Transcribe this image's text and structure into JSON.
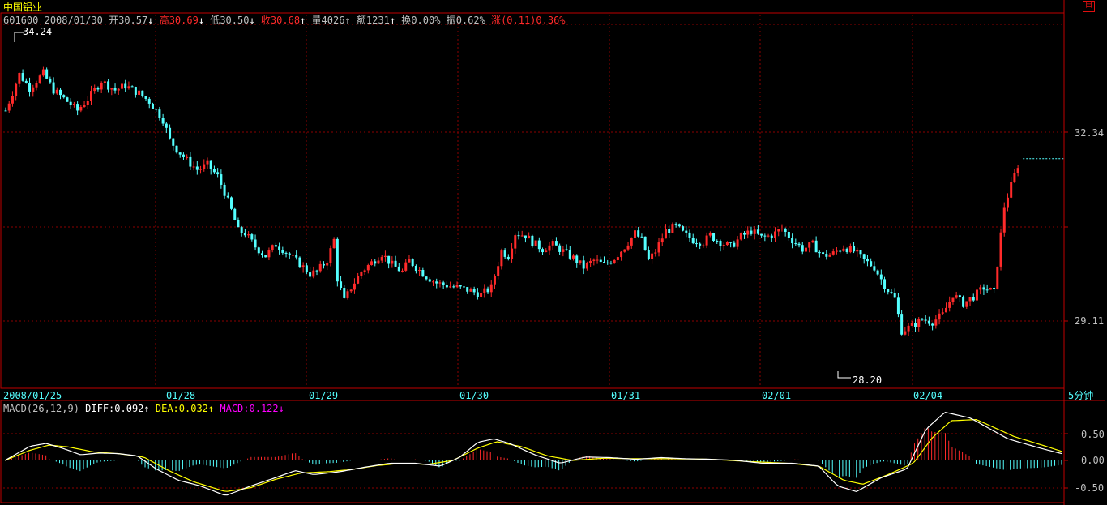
{
  "stock": {
    "name": "中国铝业",
    "code": "601600",
    "date": "2008/01/30",
    "open_label": "开",
    "open": "30.57",
    "high_label": "高",
    "high": "30.69",
    "low_label": "低",
    "low": "30.50",
    "close_label": "收",
    "close": "30.68",
    "vol_label": "量",
    "vol": "4026",
    "amount_label": "额",
    "amount": "1231",
    "turnover_label": "换",
    "turnover": "0.00%",
    "amplitude_label": "振",
    "amplitude": "0.62%",
    "change_label": "涨",
    "change": "(0.11)0.36%"
  },
  "period_label": "5分钟",
  "window_button": "日",
  "macd_header": {
    "name": "MACD(26,12,9)",
    "diff_label": "DIFF:",
    "diff": "0.092",
    "dea_label": "DEA:",
    "dea": "0.032",
    "macd_label": "MACD:",
    "macd": "0.122"
  },
  "colors": {
    "up": "#ff2a2a",
    "down": "#54ffff",
    "grid": "#8b0000",
    "border": "#c00000",
    "diff": "#ffffff",
    "dea": "#ffff00",
    "macd_label": "#ff00ff",
    "axis_text": "#c0c0c0"
  },
  "chart_data": [
    {
      "type": "candlestick",
      "x_tick_labels": [
        "2008/01/25",
        "01/28",
        "01/29",
        "01/30",
        "01/31",
        "02/01",
        "02/04"
      ],
      "y_tick_labels": [
        "32.34",
        "29.11"
      ],
      "yrange": [
        27.3,
        35.3
      ],
      "max_label": "34.24",
      "min_label": "28.20",
      "last_price": 32.34,
      "close_path": [
        [
          0,
          33.4
        ],
        [
          4,
          34.2
        ],
        [
          7,
          33.9
        ],
        [
          11,
          34.22
        ],
        [
          14,
          33.85
        ],
        [
          18,
          33.6
        ],
        [
          21,
          33.4
        ],
        [
          25,
          33.75
        ],
        [
          28,
          34.05
        ],
        [
          32,
          33.85
        ],
        [
          35,
          33.95
        ],
        [
          39,
          33.78
        ],
        [
          42,
          33.6
        ],
        [
          46,
          33.2
        ],
        [
          48,
          32.75
        ],
        [
          50,
          32.55
        ],
        [
          53,
          32.3
        ],
        [
          56,
          32.1
        ],
        [
          59,
          32.2
        ],
        [
          62,
          31.95
        ],
        [
          64,
          31.6
        ],
        [
          66,
          31.2
        ],
        [
          68,
          30.75
        ],
        [
          70,
          30.7
        ],
        [
          73,
          30.4
        ],
        [
          76,
          30.2
        ],
        [
          79,
          30.45
        ],
        [
          81,
          30.35
        ],
        [
          84,
          30.15
        ],
        [
          87,
          29.95
        ],
        [
          89,
          29.8
        ],
        [
          91,
          29.85
        ],
        [
          94,
          30.1
        ],
        [
          96,
          30.55
        ],
        [
          97,
          29.7
        ],
        [
          99,
          29.2
        ],
        [
          101,
          29.5
        ],
        [
          104,
          29.85
        ],
        [
          107,
          30.05
        ],
        [
          110,
          30.25
        ],
        [
          113,
          30.0
        ],
        [
          116,
          29.85
        ],
        [
          118,
          30.1
        ],
        [
          120,
          29.95
        ],
        [
          123,
          29.75
        ],
        [
          126,
          29.6
        ],
        [
          129,
          29.55
        ],
        [
          132,
          29.5
        ],
        [
          135,
          29.45
        ],
        [
          139,
          29.35
        ],
        [
          142,
          29.5
        ],
        [
          145,
          30.3
        ],
        [
          147,
          30.2
        ],
        [
          149,
          30.7
        ],
        [
          152,
          30.65
        ],
        [
          154,
          30.5
        ],
        [
          157,
          30.35
        ],
        [
          160,
          30.45
        ],
        [
          163,
          30.3
        ],
        [
          166,
          30.15
        ],
        [
          169,
          29.95
        ],
        [
          172,
          30.1
        ],
        [
          175,
          30.0
        ],
        [
          178,
          30.15
        ],
        [
          181,
          30.4
        ],
        [
          184,
          30.7
        ],
        [
          186,
          30.55
        ],
        [
          188,
          30.1
        ],
        [
          190,
          30.3
        ],
        [
          193,
          30.75
        ],
        [
          196,
          30.85
        ],
        [
          198,
          30.7
        ],
        [
          201,
          30.55
        ],
        [
          204,
          30.5
        ],
        [
          206,
          30.65
        ],
        [
          209,
          30.5
        ],
        [
          212,
          30.4
        ],
        [
          215,
          30.62
        ],
        [
          218,
          30.75
        ],
        [
          221,
          30.6
        ],
        [
          224,
          30.65
        ],
        [
          227,
          30.8
        ],
        [
          230,
          30.55
        ],
        [
          233,
          30.35
        ],
        [
          236,
          30.45
        ],
        [
          239,
          30.2
        ],
        [
          242,
          30.25
        ],
        [
          245,
          30.4
        ],
        [
          248,
          30.3
        ],
        [
          251,
          30.1
        ],
        [
          254,
          29.95
        ],
        [
          257,
          29.55
        ],
        [
          260,
          29.25
        ],
        [
          262,
          28.55
        ],
        [
          265,
          28.65
        ],
        [
          268,
          28.8
        ],
        [
          271,
          28.75
        ],
        [
          274,
          28.9
        ],
        [
          277,
          29.35
        ],
        [
          280,
          29.15
        ],
        [
          283,
          29.3
        ],
        [
          286,
          29.5
        ],
        [
          289,
          29.4
        ],
        [
          292,
          31.3
        ],
        [
          294,
          31.75
        ],
        [
          296,
          32.2
        ],
        [
          296.5,
          32.34
        ]
      ],
      "candle_count": 300
    },
    {
      "type": "line+bar",
      "title": "MACD(26,12,9)",
      "y_tick_labels": [
        "0.50",
        "0.00",
        "-0.50"
      ],
      "yrange": [
        -0.65,
        1.0
      ],
      "series": [
        {
          "name": "DIFF",
          "values": [
            [
              0,
              0.0
            ],
            [
              8,
              0.25
            ],
            [
              13,
              0.3
            ],
            [
              18,
              0.22
            ],
            [
              24,
              0.1
            ],
            [
              30,
              0.13
            ],
            [
              36,
              0.12
            ],
            [
              42,
              0.08
            ],
            [
              48,
              -0.15
            ],
            [
              55,
              -0.35
            ],
            [
              62,
              -0.45
            ],
            [
              70,
              -0.62
            ],
            [
              78,
              -0.45
            ],
            [
              86,
              -0.3
            ],
            [
              92,
              -0.18
            ],
            [
              98,
              -0.25
            ],
            [
              106,
              -0.2
            ],
            [
              114,
              -0.12
            ],
            [
              122,
              -0.05
            ],
            [
              130,
              -0.05
            ],
            [
              138,
              -0.1
            ],
            [
              144,
              0.05
            ],
            [
              150,
              0.32
            ],
            [
              155,
              0.38
            ],
            [
              160,
              0.3
            ],
            [
              168,
              0.1
            ],
            [
              176,
              -0.05
            ],
            [
              184,
              0.06
            ],
            [
              192,
              0.05
            ],
            [
              200,
              0.02
            ],
            [
              208,
              0.05
            ],
            [
              216,
              0.03
            ],
            [
              224,
              0.02
            ],
            [
              232,
              0.0
            ],
            [
              240,
              -0.05
            ],
            [
              250,
              -0.05
            ],
            [
              258,
              -0.1
            ],
            [
              264,
              -0.45
            ],
            [
              270,
              -0.55
            ],
            [
              278,
              -0.3
            ],
            [
              286,
              -0.15
            ],
            [
              292,
              0.55
            ],
            [
              298,
              0.85
            ],
            [
              306,
              0.75
            ],
            [
              318,
              0.38
            ],
            [
              328,
              0.22
            ],
            [
              335,
              0.12
            ]
          ]
        },
        {
          "name": "DEA",
          "values": [
            [
              0,
              0.0
            ],
            [
              8,
              0.18
            ],
            [
              14,
              0.27
            ],
            [
              20,
              0.24
            ],
            [
              28,
              0.15
            ],
            [
              36,
              0.12
            ],
            [
              44,
              0.06
            ],
            [
              52,
              -0.18
            ],
            [
              60,
              -0.38
            ],
            [
              70,
              -0.55
            ],
            [
              78,
              -0.48
            ],
            [
              86,
              -0.33
            ],
            [
              94,
              -0.22
            ],
            [
              102,
              -0.2
            ],
            [
              110,
              -0.16
            ],
            [
              118,
              -0.09
            ],
            [
              126,
              -0.05
            ],
            [
              134,
              -0.07
            ],
            [
              142,
              0.0
            ],
            [
              150,
              0.22
            ],
            [
              156,
              0.33
            ],
            [
              164,
              0.24
            ],
            [
              172,
              0.08
            ],
            [
              180,
              0.0
            ],
            [
              190,
              0.04
            ],
            [
              200,
              0.03
            ],
            [
              212,
              0.03
            ],
            [
              224,
              0.02
            ],
            [
              236,
              -0.02
            ],
            [
              248,
              -0.05
            ],
            [
              258,
              -0.1
            ],
            [
              266,
              -0.35
            ],
            [
              272,
              -0.42
            ],
            [
              280,
              -0.25
            ],
            [
              288,
              -0.05
            ],
            [
              294,
              0.4
            ],
            [
              300,
              0.7
            ],
            [
              308,
              0.72
            ],
            [
              320,
              0.42
            ],
            [
              330,
              0.25
            ],
            [
              335,
              0.16
            ]
          ]
        }
      ],
      "macd_bars_note": "MACD = 2*(DIFF-DEA) histogram"
    }
  ]
}
